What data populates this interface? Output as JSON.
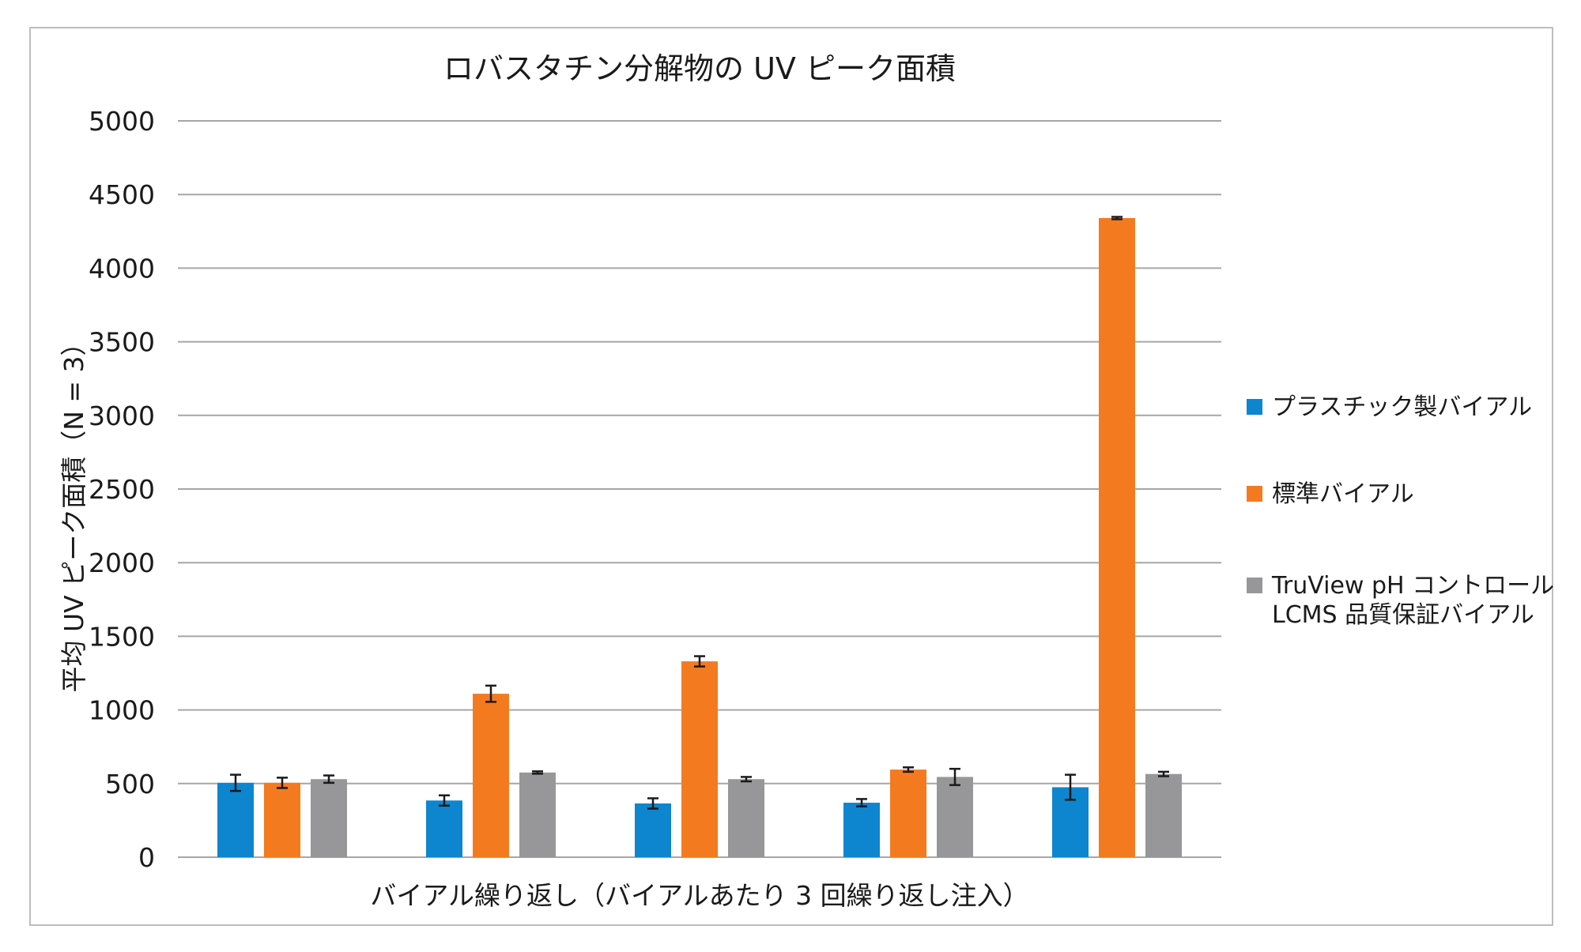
{
  "chart_data": {
    "type": "bar",
    "title": "ロバスタチン分解物の UV ピーク面積",
    "xlabel": "バイアル繰り返し（バイアルあたり 3 回繰り返し注入）",
    "ylabel": "平均 UV ピーク面積（N = 3）",
    "ylim": [
      0,
      5000
    ],
    "yticks": [
      "0",
      "500",
      "1000",
      "1500",
      "2000",
      "2500",
      "3000",
      "3500",
      "4000",
      "4500",
      "5000"
    ],
    "categories": [
      "",
      "",
      "",
      "",
      ""
    ],
    "grid": true,
    "legend_position": "right",
    "series": [
      {
        "name": "プラスチック製バイアル",
        "color": "#0e85cf",
        "values": [
          505,
          385,
          365,
          370,
          475
        ],
        "errors": [
          55,
          35,
          35,
          25,
          85
        ]
      },
      {
        "name": "標準バイアル",
        "color": "#f47a20",
        "values": [
          505,
          1110,
          1330,
          595,
          4340
        ],
        "errors": [
          35,
          55,
          35,
          15,
          8
        ]
      },
      {
        "name": "TruView pH コントロール\nLCMS 品質保証バイアル",
        "color": "#97979a",
        "values": [
          530,
          575,
          530,
          545,
          565
        ],
        "errors": [
          25,
          8,
          15,
          55,
          15
        ]
      }
    ]
  }
}
